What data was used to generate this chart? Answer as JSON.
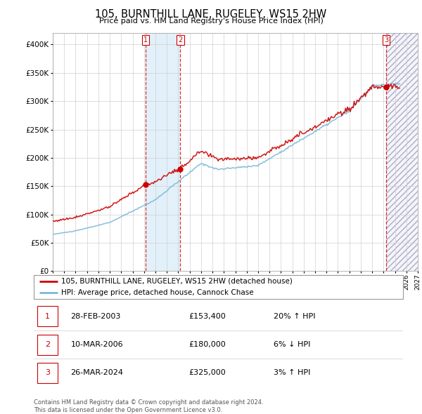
{
  "title": "105, BURNTHILL LANE, RUGELEY, WS15 2HW",
  "subtitle": "Price paid vs. HM Land Registry's House Price Index (HPI)",
  "legend_line1": "105, BURNTHILL LANE, RUGELEY, WS15 2HW (detached house)",
  "legend_line2": "HPI: Average price, detached house, Cannock Chase",
  "footnote1": "Contains HM Land Registry data © Crown copyright and database right 2024.",
  "footnote2": "This data is licensed under the Open Government Licence v3.0.",
  "transactions": [
    {
      "num": 1,
      "date": "28-FEB-2003",
      "price": "£153,400",
      "change": "20% ↑ HPI",
      "year": 2003.16,
      "value": 153400
    },
    {
      "num": 2,
      "date": "10-MAR-2006",
      "price": "£180,000",
      "change": "6% ↓ HPI",
      "year": 2006.19,
      "value": 180000
    },
    {
      "num": 3,
      "date": "26-MAR-2024",
      "price": "£325,000",
      "change": "3% ↑ HPI",
      "year": 2024.24,
      "value": 325000
    }
  ],
  "hpi_color": "#7ab8d9",
  "price_color": "#cc0000",
  "shading_color": "#d6eaf8",
  "ylim": [
    0,
    420000
  ],
  "xlim_start": 1995,
  "xlim_end": 2027,
  "yticks": [
    0,
    50000,
    100000,
    150000,
    200000,
    250000,
    300000,
    350000,
    400000
  ]
}
